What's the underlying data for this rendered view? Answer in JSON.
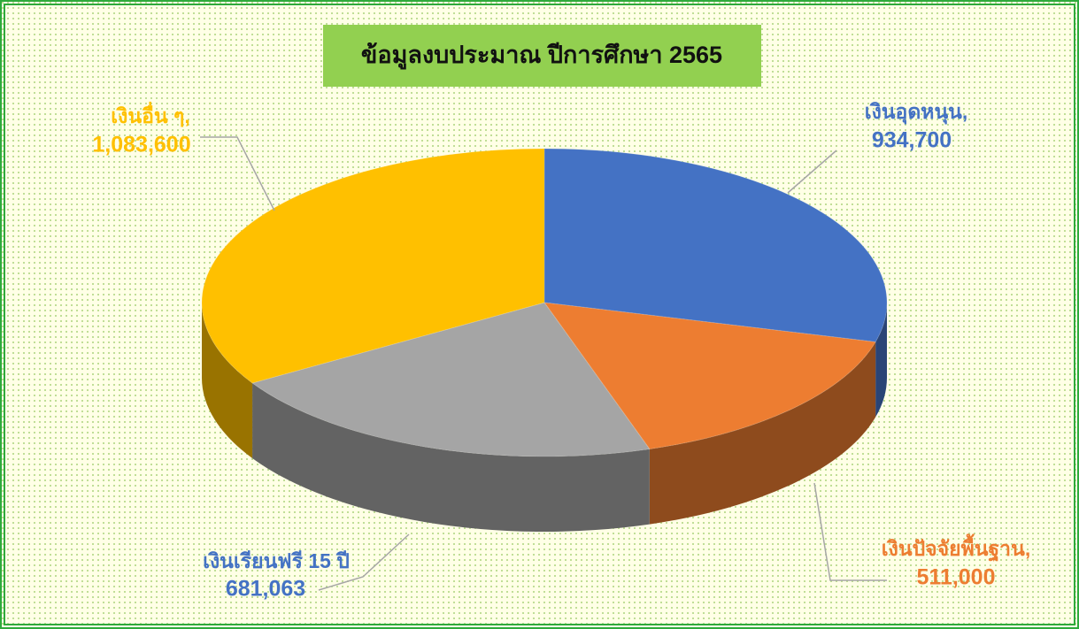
{
  "chart_data": {
    "type": "pie",
    "title": "ข้อมูลงบประมาณ ปีการศึกษา 2565",
    "categories": [
      "เงินอุดหนุน,",
      "เงินปัจจัยพื้นฐาน,",
      "เงินเรียนฟรี 15 ปี",
      "เงินอื่น ๆ,"
    ],
    "values": [
      934700,
      511000,
      681063,
      1083600
    ],
    "value_labels": [
      "934,700",
      "511,000",
      "681,063",
      "1,083,600"
    ],
    "colors": [
      "#4472c4",
      "#ed7d31",
      "#a5a5a5",
      "#ffc000"
    ],
    "label_colors": [
      "#4472c4",
      "#ed7d31",
      "#4472c4",
      "#ffc000"
    ]
  }
}
